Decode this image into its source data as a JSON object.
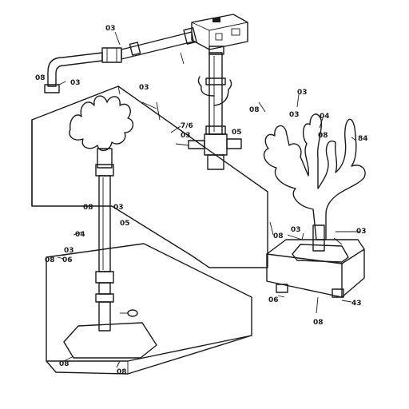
{
  "diagram": {
    "labels": {
      "pump_top": "03",
      "left_inlet_a": "08",
      "left_inlet_b": "03",
      "panel_top": "03",
      "mid_tee_a": "7/6",
      "mid_tee_b": "03",
      "mid_tee_c": "05",
      "stem_a": "08",
      "stem_b": "03",
      "stem_c": "05",
      "arrow_a": "04",
      "arrow_b": "03",
      "base_left_a": "08",
      "base_left_b": "06",
      "base_bottom_a": "08",
      "base_bottom_b": "08",
      "tree_a": "08",
      "tree_b": "03",
      "tree_c": "03",
      "tree_d": "04",
      "tree_e": "08",
      "tree_f": "84",
      "planter_right": "03",
      "planter_mid": "03",
      "planter_arrow": "08",
      "planter_left": "06",
      "planter_foot": "43",
      "planter_bottom": "08"
    },
    "colors": {
      "ink": "#1a1a1a",
      "panel_fill": "#f1f1f1",
      "coral_fill": "#8a8a8a",
      "planter_fill": "#e4e4e4"
    }
  }
}
